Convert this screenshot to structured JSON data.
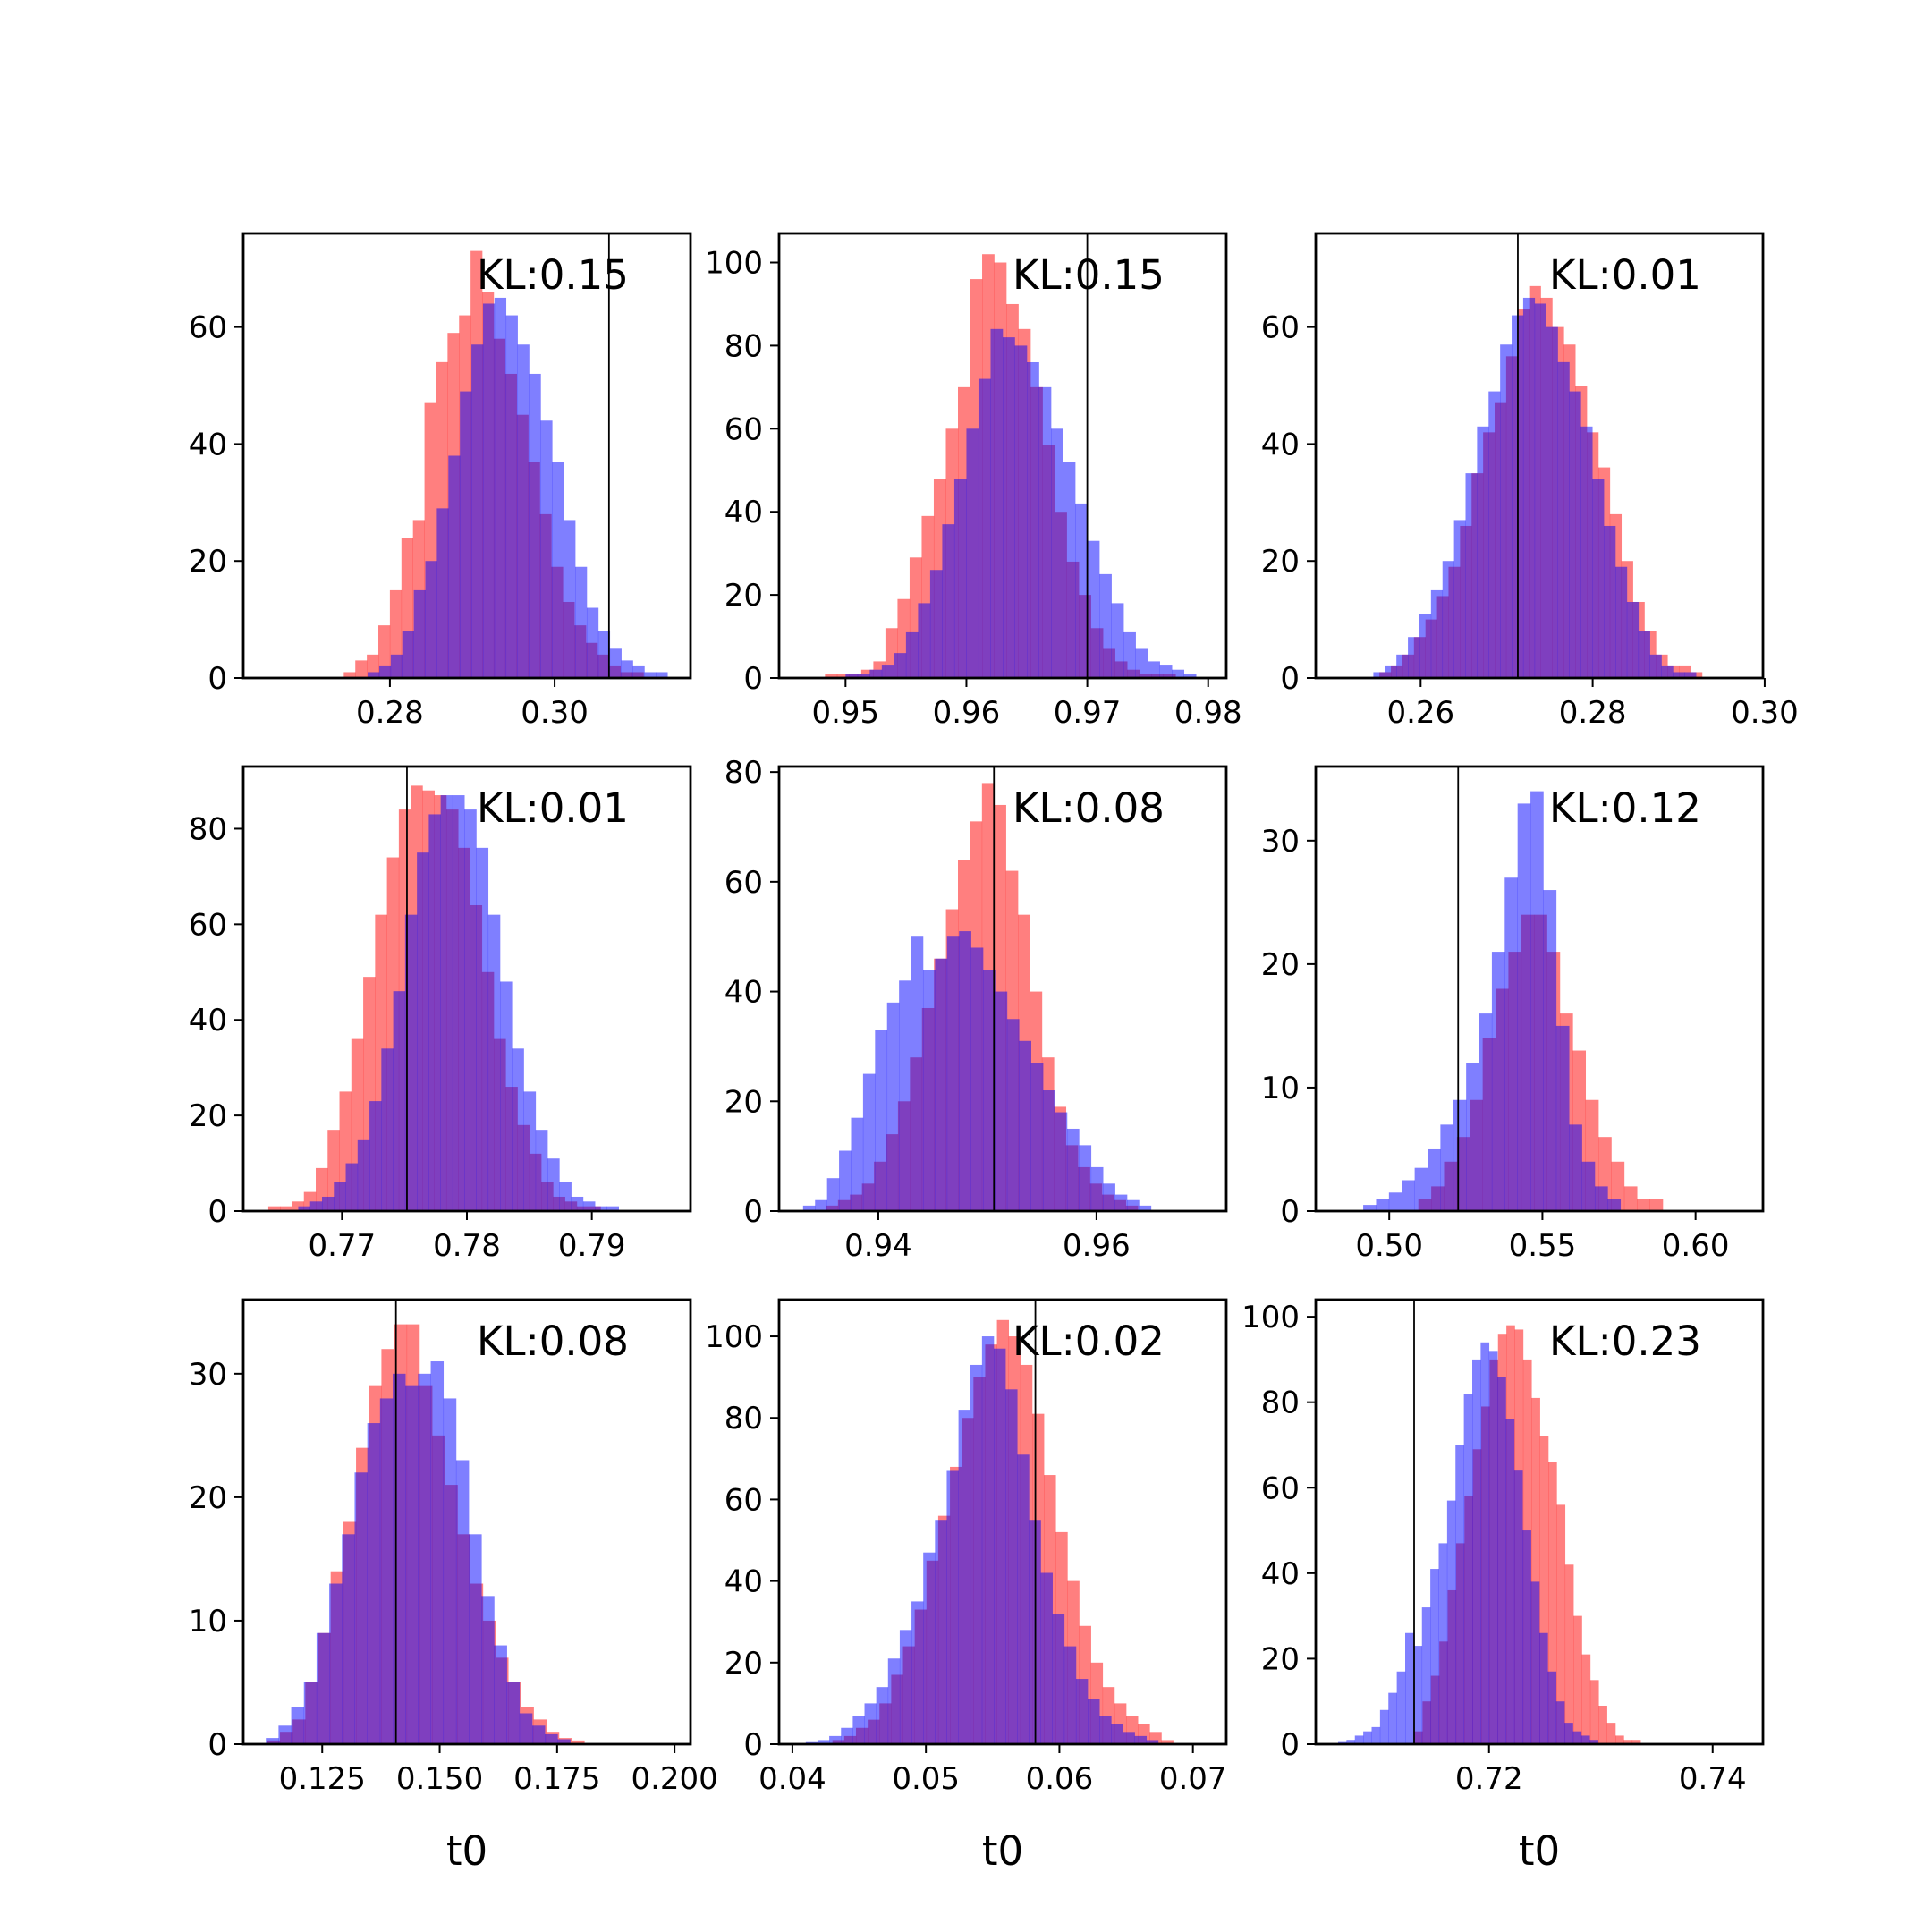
{
  "colors": {
    "series_a": "#ff0000",
    "series_b": "#0000ff",
    "overlap_alpha": 0.5,
    "reference_line": "#000000",
    "axes": "#000000",
    "background": "#ffffff"
  },
  "chart_data": [
    {
      "type": "histogram",
      "panel": "row1-col1",
      "annotation": "KL:0.15",
      "xlabel": "",
      "xlim": [
        0.2622,
        0.3165
      ],
      "ylim": [
        0,
        76
      ],
      "xticks": [
        0.28,
        0.3
      ],
      "xtick_labels": [
        "0.28",
        "0.30"
      ],
      "yticks": [
        0,
        20,
        40,
        60
      ],
      "ytick_labels": [
        "0",
        "20",
        "40",
        "60"
      ],
      "ref_line_x": 0.3066,
      "series": [
        {
          "color": "red",
          "bin_start": 0.2744,
          "bin_width": 0.0014,
          "counts": [
            1,
            3,
            4,
            9,
            15,
            24,
            27,
            47,
            54,
            59,
            62,
            73,
            66,
            58,
            52,
            45,
            37,
            28,
            19,
            13,
            9,
            6,
            4,
            2,
            1,
            1
          ]
        },
        {
          "color": "blue",
          "bin_start": 0.2773,
          "bin_width": 0.0014,
          "counts": [
            1,
            2,
            4,
            8,
            15,
            20,
            29,
            38,
            49,
            57,
            64,
            65,
            62,
            57,
            52,
            44,
            37,
            27,
            19,
            12,
            8,
            5,
            3,
            2,
            1,
            1
          ]
        }
      ]
    },
    {
      "type": "histogram",
      "panel": "row1-col2",
      "annotation": "KL:0.15",
      "xlabel": "",
      "xlim": [
        0.9445,
        0.9815
      ],
      "ylim": [
        0,
        107
      ],
      "xticks": [
        0.95,
        0.96,
        0.97,
        0.98
      ],
      "xtick_labels": [
        "0.95",
        "0.96",
        "0.97",
        "0.98"
      ],
      "yticks": [
        0,
        20,
        40,
        60,
        80,
        100
      ],
      "ytick_labels": [
        "0",
        "20",
        "40",
        "60",
        "80",
        "100"
      ],
      "ref_line_x": 0.97,
      "series": [
        {
          "color": "red",
          "bin_start": 0.9483,
          "bin_width": 0.001,
          "counts": [
            1,
            1,
            1,
            2,
            4,
            12,
            19,
            29,
            39,
            48,
            60,
            70,
            96,
            102,
            100,
            90,
            84,
            70,
            56,
            40,
            28,
            20,
            12,
            7,
            4,
            2,
            1,
            1,
            1
          ]
        },
        {
          "color": "blue",
          "bin_start": 0.95,
          "bin_width": 0.001,
          "counts": [
            1,
            1,
            2,
            3,
            6,
            11,
            18,
            26,
            37,
            48,
            60,
            72,
            84,
            82,
            80,
            76,
            70,
            60,
            52,
            42,
            33,
            25,
            18,
            11,
            7,
            4,
            3,
            2,
            1
          ]
        }
      ]
    },
    {
      "type": "histogram",
      "panel": "row1-col3",
      "annotation": "KL:0.01",
      "xlabel": "",
      "xlim": [
        0.2478,
        0.2998
      ],
      "ylim": [
        0,
        76
      ],
      "xticks": [
        0.26,
        0.28,
        0.3
      ],
      "xtick_labels": [
        "0.26",
        "0.28",
        "0.30"
      ],
      "yticks": [
        0,
        20,
        40,
        60
      ],
      "ytick_labels": [
        "0",
        "20",
        "40",
        "60"
      ],
      "ref_line_x": 0.2713,
      "series": [
        {
          "color": "red",
          "bin_start": 0.2552,
          "bin_width": 0.00134,
          "counts": [
            1,
            2,
            4,
            7,
            10,
            14,
            19,
            26,
            35,
            42,
            47,
            55,
            63,
            67,
            65,
            60,
            57,
            50,
            42,
            36,
            28,
            20,
            13,
            8,
            4,
            2,
            2,
            1
          ]
        },
        {
          "color": "blue",
          "bin_start": 0.2545,
          "bin_width": 0.00134,
          "counts": [
            1,
            2,
            4,
            7,
            11,
            15,
            20,
            27,
            35,
            43,
            49,
            57,
            62,
            65,
            64,
            60,
            54,
            49,
            43,
            34,
            26,
            19,
            13,
            8,
            4,
            2,
            1,
            1
          ]
        }
      ]
    },
    {
      "type": "histogram",
      "panel": "row2-col1",
      "annotation": "KL:0.01",
      "xlabel": "",
      "xlim": [
        0.7621,
        0.7979
      ],
      "ylim": [
        0,
        93
      ],
      "xticks": [
        0.77,
        0.78,
        0.79
      ],
      "xtick_labels": [
        "0.77",
        "0.78",
        "0.79"
      ],
      "yticks": [
        0,
        20,
        40,
        60,
        80
      ],
      "ytick_labels": [
        "0",
        "20",
        "40",
        "60",
        "80"
      ],
      "ref_line_x": 0.7752,
      "series": [
        {
          "color": "red",
          "bin_start": 0.7641,
          "bin_width": 0.00095,
          "counts": [
            1,
            1,
            2,
            4,
            9,
            17,
            25,
            36,
            49,
            62,
            74,
            84,
            89,
            88,
            87,
            84,
            76,
            64,
            50,
            36,
            26,
            18,
            12,
            6,
            3,
            2,
            1,
            1
          ]
        },
        {
          "color": "blue",
          "bin_start": 0.7665,
          "bin_width": 0.00095,
          "counts": [
            1,
            2,
            3,
            6,
            10,
            15,
            23,
            34,
            46,
            62,
            75,
            83,
            87,
            87,
            84,
            76,
            62,
            48,
            34,
            25,
            17,
            11,
            6,
            3,
            2,
            1,
            1
          ]
        }
      ]
    },
    {
      "type": "histogram",
      "panel": "row2-col2",
      "annotation": "KL:0.08",
      "xlabel": "",
      "xlim": [
        0.9309,
        0.9719
      ],
      "ylim": [
        0,
        81
      ],
      "xticks": [
        0.94,
        0.96
      ],
      "xtick_labels": [
        "0.94",
        "0.96"
      ],
      "yticks": [
        0,
        20,
        40,
        60,
        80
      ],
      "ytick_labels": [
        "0",
        "20",
        "40",
        "60",
        "80"
      ],
      "ref_line_x": 0.9506,
      "series": [
        {
          "color": "red",
          "bin_start": 0.9352,
          "bin_width": 0.0011,
          "counts": [
            1,
            2,
            3,
            5,
            9,
            14,
            20,
            28,
            37,
            46,
            55,
            64,
            71,
            78,
            74,
            62,
            54,
            40,
            28,
            19,
            12,
            8,
            5,
            3,
            2,
            1
          ]
        },
        {
          "color": "blue",
          "bin_start": 0.9331,
          "bin_width": 0.0011,
          "counts": [
            1,
            2,
            6,
            11,
            17,
            25,
            33,
            38,
            42,
            50,
            44,
            46,
            50,
            51,
            48,
            44,
            40,
            35,
            31,
            27,
            22,
            18,
            15,
            12,
            8,
            5,
            3,
            2,
            1
          ]
        }
      ]
    },
    {
      "type": "histogram",
      "panel": "row2-col3",
      "annotation": "KL:0.12",
      "xlabel": "",
      "xlim": [
        0.476,
        0.622
      ],
      "ylim": [
        0,
        36
      ],
      "xticks": [
        0.5,
        0.55,
        0.6
      ],
      "xtick_labels": [
        "0.50",
        "0.55",
        "0.60"
      ],
      "yticks": [
        0,
        10,
        20,
        30
      ],
      "ytick_labels": [
        "0",
        "10",
        "20",
        "30"
      ],
      "ref_line_x": 0.5225,
      "series": [
        {
          "color": "red",
          "bin_start": 0.5095,
          "bin_width": 0.0042,
          "counts": [
            1,
            2,
            4,
            6,
            9,
            14,
            18,
            21,
            24,
            24,
            21,
            16,
            13,
            9,
            6,
            4,
            2,
            1,
            1
          ]
        },
        {
          "color": "blue",
          "bin_start": 0.4915,
          "bin_width": 0.0042,
          "counts": [
            0.5,
            1,
            1.5,
            2.5,
            3.5,
            5,
            7,
            9,
            12,
            16,
            21,
            27,
            33,
            34,
            26,
            15,
            7,
            4,
            2,
            1
          ]
        }
      ]
    },
    {
      "type": "histogram",
      "panel": "row3-col1",
      "annotation": "KL:0.08",
      "xlabel": "t0",
      "xlim": [
        0.1082,
        0.2034
      ],
      "ylim": [
        0,
        36
      ],
      "xticks": [
        0.125,
        0.15,
        0.175,
        0.2
      ],
      "xtick_labels": [
        "0.125",
        "0.150",
        "0.175",
        "0.200"
      ],
      "yticks": [
        0,
        10,
        20,
        30
      ],
      "ytick_labels": [
        "0",
        "10",
        "20",
        "30"
      ],
      "ref_line_x": 0.1407,
      "series": [
        {
          "color": "red",
          "bin_start": 0.1133,
          "bin_width": 0.0027,
          "counts": [
            0.3,
            1,
            2,
            5,
            9,
            14,
            18,
            24,
            29,
            32,
            34,
            34,
            29,
            25,
            21,
            17,
            13,
            10,
            7,
            5,
            3,
            2,
            1,
            0.5,
            0.3
          ]
        },
        {
          "color": "blue",
          "bin_start": 0.113,
          "bin_width": 0.0027,
          "counts": [
            0.5,
            1.5,
            3,
            5,
            9,
            13,
            17,
            22,
            26,
            28,
            30,
            29,
            30,
            31,
            28,
            23,
            17,
            12,
            8,
            5,
            2.5,
            1.5,
            0.8,
            0.4
          ]
        }
      ]
    },
    {
      "type": "histogram",
      "panel": "row3-col2",
      "annotation": "KL:0.02",
      "xlabel": "t0",
      "xlim": [
        0.039,
        0.0725
      ],
      "ylim": [
        0,
        109
      ],
      "xticks": [
        0.04,
        0.05,
        0.06,
        0.07
      ],
      "xtick_labels": [
        "0.04",
        "0.05",
        "0.06",
        "0.07"
      ],
      "yticks": [
        0,
        20,
        40,
        60,
        80,
        100
      ],
      "ytick_labels": [
        "0",
        "20",
        "40",
        "60",
        "80",
        "100"
      ],
      "ref_line_x": 0.0582,
      "series": [
        {
          "color": "red",
          "bin_start": 0.043,
          "bin_width": 0.00088,
          "counts": [
            1,
            2,
            4,
            6,
            10,
            17,
            24,
            33,
            45,
            56,
            68,
            80,
            90,
            98,
            104,
            100,
            93,
            81,
            66,
            52,
            40,
            29,
            20,
            14,
            10,
            7,
            5,
            3,
            1
          ]
        },
        {
          "color": "blue",
          "bin_start": 0.041,
          "bin_width": 0.00088,
          "counts": [
            0.5,
            1,
            2,
            4,
            7,
            10,
            14,
            21,
            28,
            35,
            47,
            55,
            67,
            82,
            93,
            100,
            97,
            87,
            71,
            55,
            42,
            32,
            24,
            16,
            11,
            7,
            5,
            3,
            2,
            1
          ]
        }
      ]
    },
    {
      "type": "histogram",
      "panel": "row3-col3",
      "annotation": "KL:0.23",
      "xlabel": "t0",
      "xlim": [
        0.7045,
        0.7445
      ],
      "ylim": [
        0,
        104
      ],
      "xticks": [
        0.72,
        0.74
      ],
      "xtick_labels": [
        "0.72",
        "0.74"
      ],
      "yticks": [
        0,
        20,
        40,
        60,
        80,
        100
      ],
      "ytick_labels": [
        "0",
        "20",
        "40",
        "60",
        "80",
        "100"
      ],
      "ref_line_x": 0.7133,
      "series": [
        {
          "color": "red",
          "bin_start": 0.7133,
          "bin_width": 0.00075,
          "counts": [
            3,
            10,
            16,
            24,
            36,
            47,
            58,
            69,
            79,
            90,
            96,
            98,
            97,
            90,
            81,
            72,
            66,
            56,
            42,
            30,
            21,
            15,
            9,
            5,
            2,
            1,
            1
          ]
        },
        {
          "color": "blue",
          "bin_start": 0.7065,
          "bin_width": 0.00075,
          "counts": [
            0.5,
            1,
            2,
            3,
            4,
            8,
            12,
            17,
            26,
            23,
            32,
            41,
            47,
            57,
            70,
            82,
            90,
            94,
            92,
            86,
            76,
            64,
            50,
            38,
            26,
            17,
            10,
            5,
            3,
            2,
            1
          ]
        }
      ]
    }
  ]
}
